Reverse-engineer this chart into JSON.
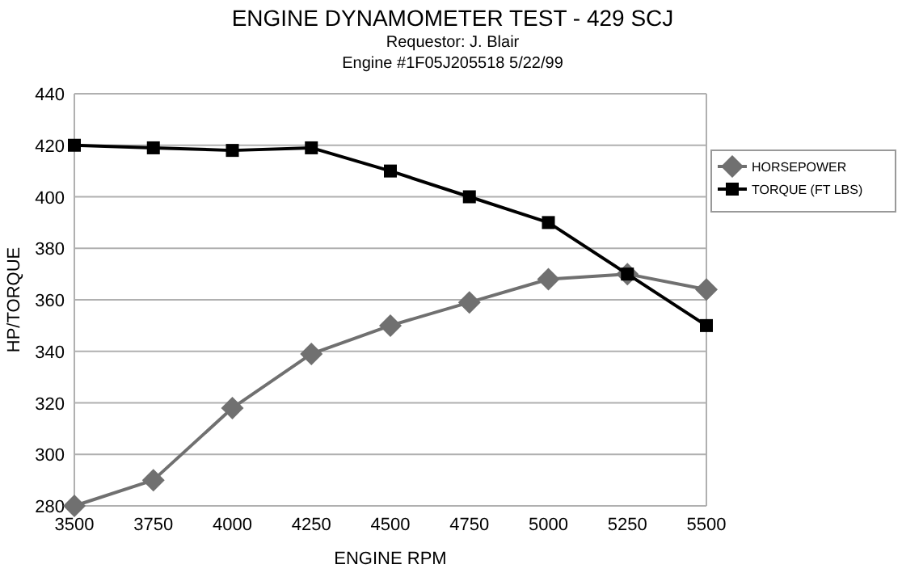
{
  "chart_data": {
    "type": "line",
    "title": "ENGINE DYNAMOMETER TEST - 429 SCJ",
    "subtitle": "Requestor: J. Blair",
    "annotations": [
      "Engine #1F05J205518  5/22/99"
    ],
    "xlabel": "ENGINE RPM",
    "ylabel": "HP/TORQUE",
    "categories": [
      "3500",
      "3750",
      "4000",
      "4250",
      "4500",
      "4750",
      "5000",
      "5250",
      "5500"
    ],
    "series": [
      {
        "name": "HORSEPOWER",
        "color": "#707070",
        "marker": "diamond",
        "values": [
          280,
          290,
          318,
          339,
          350,
          359,
          368,
          370,
          364
        ]
      },
      {
        "name": "TORQUE (FT LBS)",
        "color": "#000000",
        "marker": "square",
        "values": [
          420,
          419,
          418,
          419,
          410,
          400,
          390,
          370,
          350
        ]
      }
    ],
    "ylim": [
      280,
      440
    ],
    "yticks": [
      280,
      300,
      320,
      340,
      360,
      380,
      400,
      420,
      440
    ],
    "grid": "y",
    "legend": "right",
    "line_style": "solid"
  }
}
